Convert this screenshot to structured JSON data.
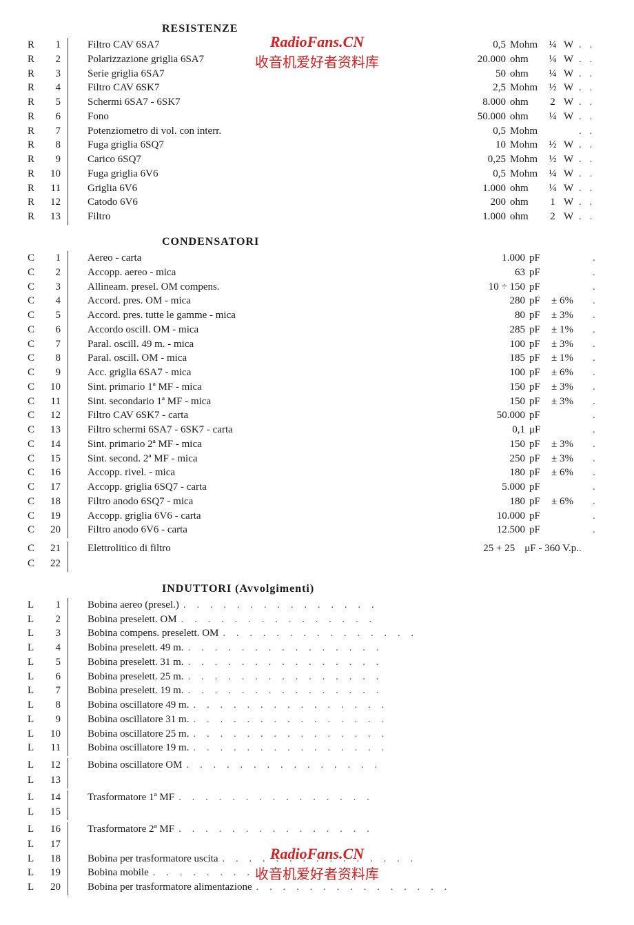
{
  "watermark": {
    "site": "RadioFans.CN",
    "cn_top": "收音机爱好者资料库",
    "cn_bottom": "收音机爱好者资料库"
  },
  "sections": [
    {
      "heading": "RESISTENZE",
      "rows": [
        {
          "ref": "R",
          "num": "1",
          "desc": "Filtro CAV 6SA7",
          "val": "0,5",
          "unit": "Mohm",
          "pow": "¼",
          "punit": "W"
        },
        {
          "ref": "R",
          "num": "2",
          "desc": "Polarizzazione griglia 6SA7",
          "val": "20.000",
          "unit": "ohm",
          "pow": "¼",
          "punit": "W"
        },
        {
          "ref": "R",
          "num": "3",
          "desc": "Serie griglia 6SA7",
          "val": "50",
          "unit": "ohm",
          "pow": "¼",
          "punit": "W"
        },
        {
          "ref": "R",
          "num": "4",
          "desc": "Filtro CAV 6SK7",
          "val": "2,5",
          "unit": "Mohm",
          "pow": "½",
          "punit": "W"
        },
        {
          "ref": "R",
          "num": "5",
          "desc": "Schermi 6SA7 - 6SK7",
          "val": "8.000",
          "unit": "ohm",
          "pow": "2",
          "punit": "W"
        },
        {
          "ref": "R",
          "num": "6",
          "desc": "Fono",
          "val": "50.000",
          "unit": "ohm",
          "pow": "¼",
          "punit": "W"
        },
        {
          "ref": "R",
          "num": "7",
          "desc": "Potenziometro di vol. con interr.",
          "val": "0,5",
          "unit": "Mohm",
          "pow": "",
          "punit": ""
        },
        {
          "ref": "R",
          "num": "8",
          "desc": "Fuga griglia 6SQ7",
          "val": "10",
          "unit": "Mohm",
          "pow": "½",
          "punit": "W"
        },
        {
          "ref": "R",
          "num": "9",
          "desc": "Carico 6SQ7",
          "val": "0,25",
          "unit": "Mohm",
          "pow": "½",
          "punit": "W"
        },
        {
          "ref": "R",
          "num": "10",
          "desc": "Fuga griglia 6V6",
          "val": "0,5",
          "unit": "Mohm",
          "pow": "¼",
          "punit": "W"
        },
        {
          "ref": "R",
          "num": "11",
          "desc": "Griglia 6V6",
          "val": "1.000",
          "unit": "ohm",
          "pow": "¼",
          "punit": "W"
        },
        {
          "ref": "R",
          "num": "12",
          "desc": "Catodo 6V6",
          "val": "200",
          "unit": "ohm",
          "pow": "1",
          "punit": "W"
        },
        {
          "ref": "R",
          "num": "13",
          "desc": "Filtro",
          "val": "1.000",
          "unit": "ohm",
          "pow": "2",
          "punit": "W"
        }
      ]
    },
    {
      "heading": "CONDENSATORI",
      "rows": [
        {
          "ref": "C",
          "num": "1",
          "desc": "Aereo - carta",
          "val": "1.000",
          "unit": "pF",
          "tol": ""
        },
        {
          "ref": "C",
          "num": "2",
          "desc": "Accopp. aereo - mica",
          "val": "63",
          "unit": "pF",
          "tol": ""
        },
        {
          "ref": "C",
          "num": "3",
          "desc": "Allineam. presel. OM compens.",
          "val": "10 ÷ 150",
          "unit": "pF",
          "tol": ""
        },
        {
          "ref": "C",
          "num": "4",
          "desc": "Accord. pres. OM - mica",
          "val": "280",
          "unit": "pF",
          "tol": "± 6%"
        },
        {
          "ref": "C",
          "num": "5",
          "desc": "Accord. pres. tutte le gamme - mica",
          "val": "80",
          "unit": "pF",
          "tol": "± 3%"
        },
        {
          "ref": "C",
          "num": "6",
          "desc": "Accordo oscill. OM - mica",
          "val": "285",
          "unit": "pF",
          "tol": "± 1%"
        },
        {
          "ref": "C",
          "num": "7",
          "desc": "Paral. oscill. 49 m. - mica",
          "val": "100",
          "unit": "pF",
          "tol": "± 3%"
        },
        {
          "ref": "C",
          "num": "8",
          "desc": "Paral. oscill. OM - mica",
          "val": "185",
          "unit": "pF",
          "tol": "± 1%"
        },
        {
          "ref": "C",
          "num": "9",
          "desc": "Acc. griglia 6SA7 - mica",
          "val": "100",
          "unit": "pF",
          "tol": "± 6%"
        },
        {
          "ref": "C",
          "num": "10",
          "desc": "Sint. primario 1ª MF - mica",
          "val": "150",
          "unit": "pF",
          "tol": "± 3%"
        },
        {
          "ref": "C",
          "num": "11",
          "desc": "Sint. secondario 1ª MF - mica",
          "val": "150",
          "unit": "pF",
          "tol": "± 3%"
        },
        {
          "ref": "C",
          "num": "12",
          "desc": "Filtro CAV 6SK7 - carta",
          "val": "50.000",
          "unit": "pF",
          "tol": ""
        },
        {
          "ref": "C",
          "num": "13",
          "desc": "Filtro schermi 6SA7 - 6SK7 - carta",
          "val": "0,1",
          "unit": "μF",
          "tol": ""
        },
        {
          "ref": "C",
          "num": "14",
          "desc": "Sint. primario 2ª MF - mica",
          "val": "150",
          "unit": "pF",
          "tol": "± 3%"
        },
        {
          "ref": "C",
          "num": "15",
          "desc": "Sint. second. 2ª MF - mica",
          "val": "250",
          "unit": "pF",
          "tol": "± 3%"
        },
        {
          "ref": "C",
          "num": "16",
          "desc": "Accopp. rivel. - mica",
          "val": "180",
          "unit": "pF",
          "tol": "± 6%"
        },
        {
          "ref": "C",
          "num": "17",
          "desc": "Accopp. griglia 6SQ7 - carta",
          "val": "5.000",
          "unit": "pF",
          "tol": ""
        },
        {
          "ref": "C",
          "num": "18",
          "desc": "Filtro anodo 6SQ7 - mica",
          "val": "180",
          "unit": "pF",
          "tol": "± 6%"
        },
        {
          "ref": "C",
          "num": "19",
          "desc": "Accopp. griglia 6V6 - carta",
          "val": "10.000",
          "unit": "pF",
          "tol": ""
        },
        {
          "ref": "C",
          "num": "20",
          "desc": "Filtro anodo 6V6 - carta",
          "val": "12.500",
          "unit": "pF",
          "tol": ""
        }
      ],
      "multi": {
        "refs": [
          {
            "ref": "C",
            "num": "21"
          },
          {
            "ref": "C",
            "num": "22"
          }
        ],
        "desc": "Elettrolitico di filtro",
        "val": "25 + 25",
        "unit": "μF - 360 V.p."
      }
    },
    {
      "heading": "INDUTTORI (Avvolgimenti)",
      "rows": [
        {
          "ref": "L",
          "num": "1",
          "desc": "Bobina aereo (presel.)"
        },
        {
          "ref": "L",
          "num": "2",
          "desc": "Bobina preselett. OM"
        },
        {
          "ref": "L",
          "num": "3",
          "desc": "Bobina compens. preselett. OM"
        },
        {
          "ref": "L",
          "num": "4",
          "desc": "Bobina preselett. 49 m."
        },
        {
          "ref": "L",
          "num": "5",
          "desc": "Bobina preselett. 31 m."
        },
        {
          "ref": "L",
          "num": "6",
          "desc": "Bobina preselett. 25 m."
        },
        {
          "ref": "L",
          "num": "7",
          "desc": "Bobina preselett. 19 m."
        },
        {
          "ref": "L",
          "num": "8",
          "desc": "Bobina oscillatore 49 m."
        },
        {
          "ref": "L",
          "num": "9",
          "desc": "Bobina oscillatore 31 m."
        },
        {
          "ref": "L",
          "num": "10",
          "desc": "Bobina oscillatore 25 m."
        },
        {
          "ref": "L",
          "num": "11",
          "desc": "Bobina oscillatore 19 m."
        }
      ],
      "multi_rows": [
        {
          "refs": [
            {
              "ref": "L",
              "num": "12"
            },
            {
              "ref": "L",
              "num": "13"
            }
          ],
          "desc": "Bobina oscillatore OM"
        },
        {
          "refs": [
            {
              "ref": "L",
              "num": "14"
            },
            {
              "ref": "L",
              "num": "15"
            }
          ],
          "desc": "Trasformatore 1ª MF"
        },
        {
          "refs": [
            {
              "ref": "L",
              "num": "16"
            },
            {
              "ref": "L",
              "num": "17"
            }
          ],
          "desc": "Trasformatore 2ª MF"
        }
      ],
      "rows2": [
        {
          "ref": "L",
          "num": "18",
          "desc": "Bobina per trasformatore uscita"
        },
        {
          "ref": "L",
          "num": "19",
          "desc": "Bobina mobile"
        },
        {
          "ref": "L",
          "num": "20",
          "desc": "Bobina per trasformatore alimentazione"
        }
      ]
    }
  ]
}
